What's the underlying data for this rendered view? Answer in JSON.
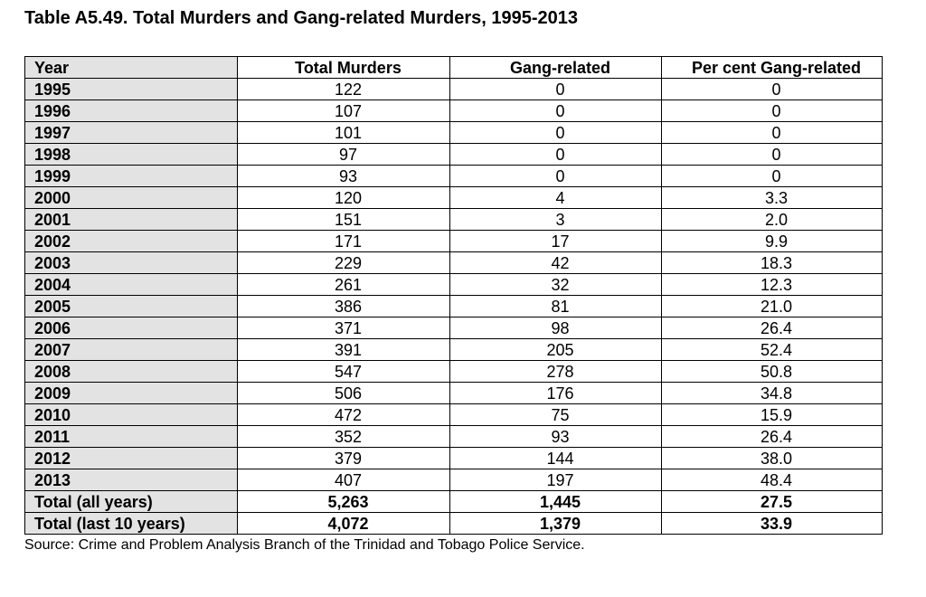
{
  "header": {
    "title": "Table A5.49. Total Murders and Gang-related Murders, 1995-2013"
  },
  "table": {
    "columns": [
      "Year",
      "Total Murders",
      "Gang-related",
      "Per cent Gang-related"
    ],
    "rows": [
      [
        "1995",
        "122",
        "0",
        "0"
      ],
      [
        "1996",
        "107",
        "0",
        "0"
      ],
      [
        "1997",
        "101",
        "0",
        "0"
      ],
      [
        "1998",
        "97",
        "0",
        "0"
      ],
      [
        "1999",
        "93",
        "0",
        "0"
      ],
      [
        "2000",
        "120",
        "4",
        "3.3"
      ],
      [
        "2001",
        "151",
        "3",
        "2.0"
      ],
      [
        "2002",
        "171",
        "17",
        "9.9"
      ],
      [
        "2003",
        "229",
        "42",
        "18.3"
      ],
      [
        "2004",
        "261",
        "32",
        "12.3"
      ],
      [
        "2005",
        "386",
        "81",
        "21.0"
      ],
      [
        "2006",
        "371",
        "98",
        "26.4"
      ],
      [
        "2007",
        "391",
        "205",
        "52.4"
      ],
      [
        "2008",
        "547",
        "278",
        "50.8"
      ],
      [
        "2009",
        "506",
        "176",
        "34.8"
      ],
      [
        "2010",
        "472",
        "75",
        "15.9"
      ],
      [
        "2011",
        "352",
        "93",
        "26.4"
      ],
      [
        "2012",
        "379",
        "144",
        "38.0"
      ],
      [
        "2013",
        "407",
        "197",
        "48.4"
      ]
    ],
    "totals": [
      [
        "Total (all years)",
        "5,263",
        "1,445",
        "27.5"
      ],
      [
        "Total (last 10 years)",
        "4,072",
        "1,379",
        "33.9"
      ]
    ]
  },
  "source": "Source: Crime and Problem Analysis Branch of the Trinidad and Tobago Police Service."
}
